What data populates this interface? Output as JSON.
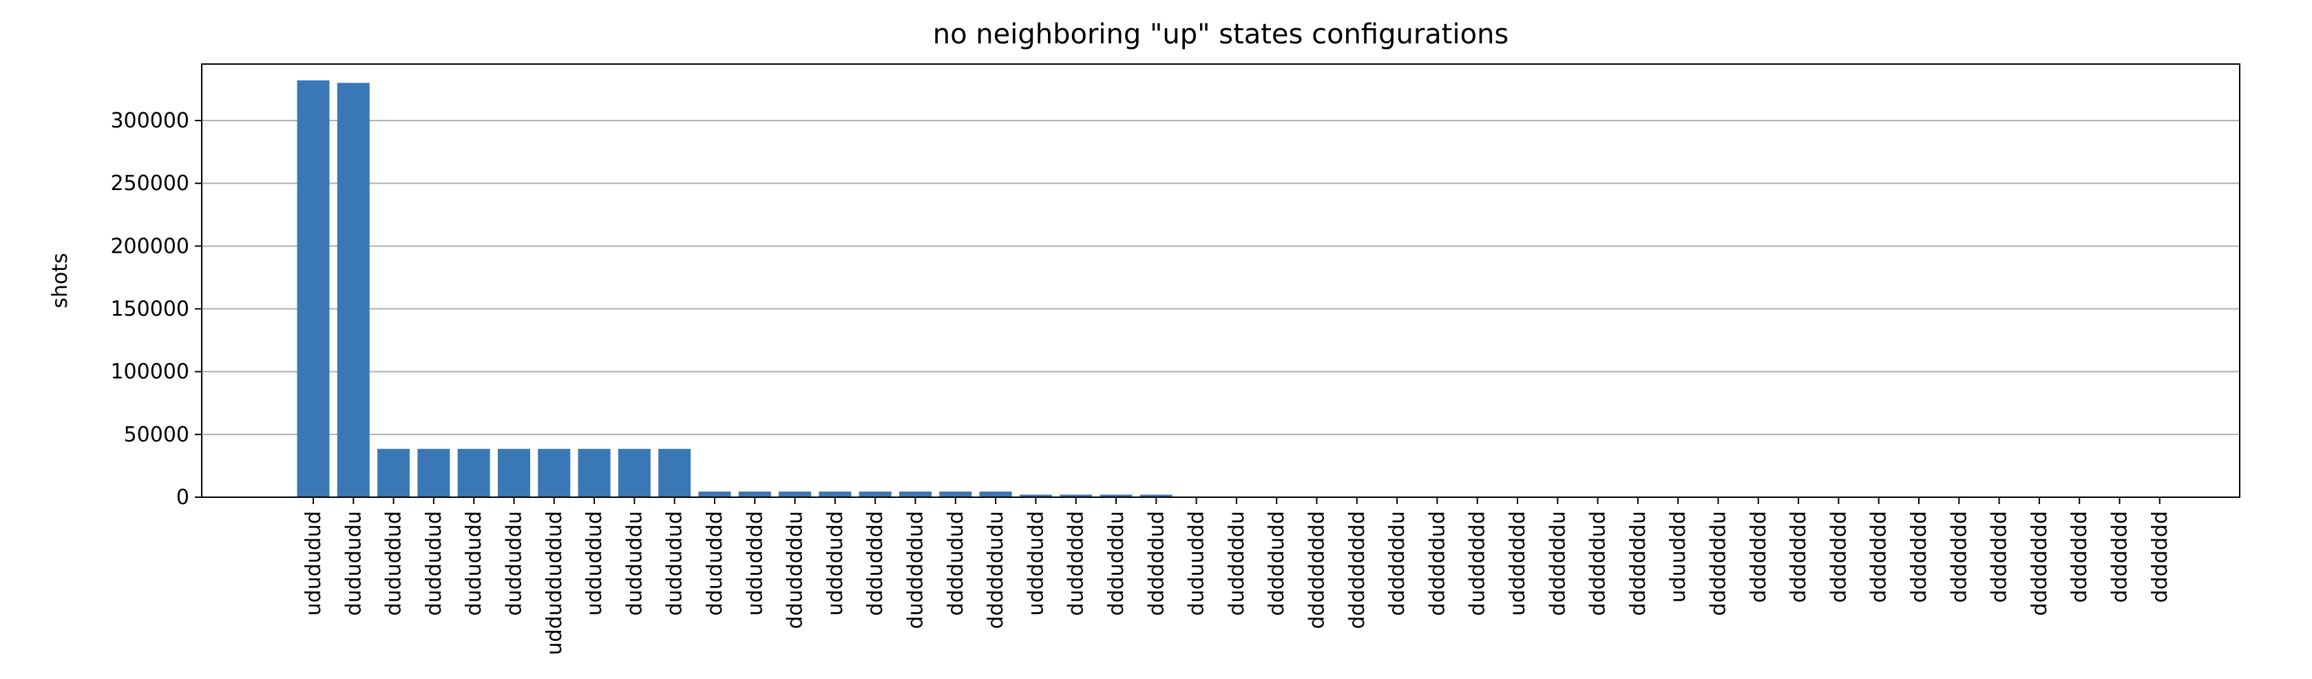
{
  "chart_data": {
    "type": "bar",
    "title": "no neighboring \"up\" states configurations",
    "xlabel": "",
    "ylabel": "shots",
    "ylim": [
      0,
      345000
    ],
    "yticks": [
      0,
      50000,
      100000,
      150000,
      200000,
      250000,
      300000
    ],
    "ytick_labels": [
      "0",
      "50000",
      "100000",
      "150000",
      "200000",
      "250000",
      "300000"
    ],
    "grid": "y",
    "bar_color": "#3a78b5",
    "categories": [
      "udududud",
      "dudududu",
      "dududdud",
      "duddudud",
      "dudududd",
      "dudduddu",
      "uddudduddud",
      "udduddud",
      "dudduddu",
      "duddudud",
      "ddududdd",
      "uddudddd",
      "ddudddddu",
      "uddddudd",
      "dddudddd",
      "dudddddud",
      "ddddudud",
      "ddddddudu",
      "uddddudd",
      "dudddddd",
      "dddudddu",
      "ddddddud",
      "duduuddd",
      "dudddddu",
      "dddddudd",
      "ddddddddd",
      "ddddddddd",
      "dddddddu",
      "ddddddud",
      "dudddddd",
      "uddddddd",
      "dddddddu",
      "ddddddud",
      "dddddddu",
      "uduuddd",
      "dddddddu",
      "ddddddd",
      "ddddddd",
      "ddddddd",
      "ddddddd",
      "ddddddd",
      "ddddddd",
      "ddddddd",
      "dddddddd",
      "ddddddd",
      "ddddddd",
      "ddddddd"
    ],
    "values": [
      332000,
      330000,
      38500,
      38500,
      38500,
      38500,
      38500,
      38500,
      38500,
      38500,
      4500,
      4500,
      4500,
      4500,
      4500,
      4500,
      4500,
      4500,
      2000,
      2000,
      2000,
      2000,
      300,
      300,
      300,
      300,
      300,
      300,
      300,
      300,
      300,
      300,
      300,
      300,
      300,
      300,
      300,
      300,
      300,
      300,
      300,
      300,
      300,
      300,
      300,
      300,
      300
    ]
  }
}
